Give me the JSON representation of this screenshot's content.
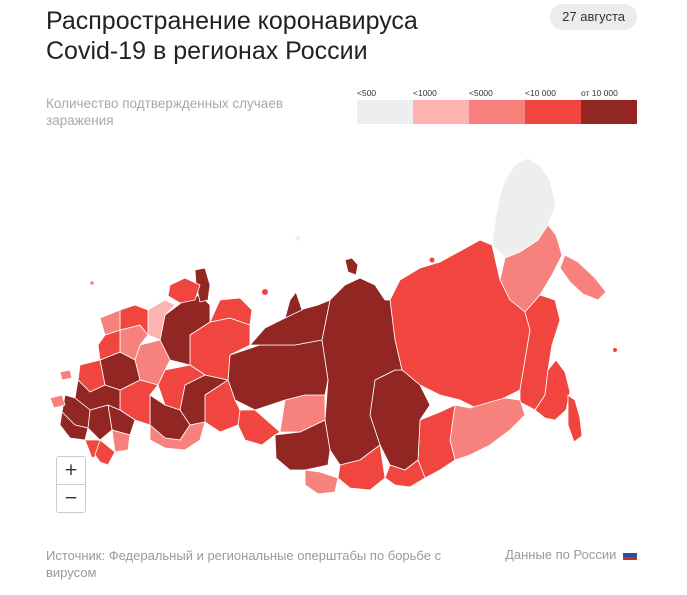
{
  "header": {
    "title": "Распространение коронавируса Covid-19 в регионах России",
    "date_badge": "27 августа",
    "subtitle": "Количество подтвержденных случаев заражения"
  },
  "legend": {
    "items": [
      {
        "label": "<500",
        "color": "#eeeeee"
      },
      {
        "label": "<1000",
        "color": "#fcb3b1"
      },
      {
        "label": "<5000",
        "color": "#f7827d"
      },
      {
        "label": "<10 000",
        "color": "#f0463f"
      },
      {
        "label": "от 10 000",
        "color": "#922622"
      }
    ]
  },
  "map": {
    "region_colors": {
      "lt500": "#eeeeee",
      "lt1000": "#fcb3b1",
      "lt5000": "#f7827d",
      "lt10000": "#f0463f",
      "gte10000": "#922622"
    }
  },
  "zoom": {
    "plus_label": "+",
    "minus_label": "−"
  },
  "footer": {
    "source": "Источник: Федеральный и региональные оперштабы по борьбе с вирусом",
    "russia_link": "Данные по России",
    "flag_colors": [
      "#ffffff",
      "#1c57a5",
      "#d52b1e"
    ]
  }
}
